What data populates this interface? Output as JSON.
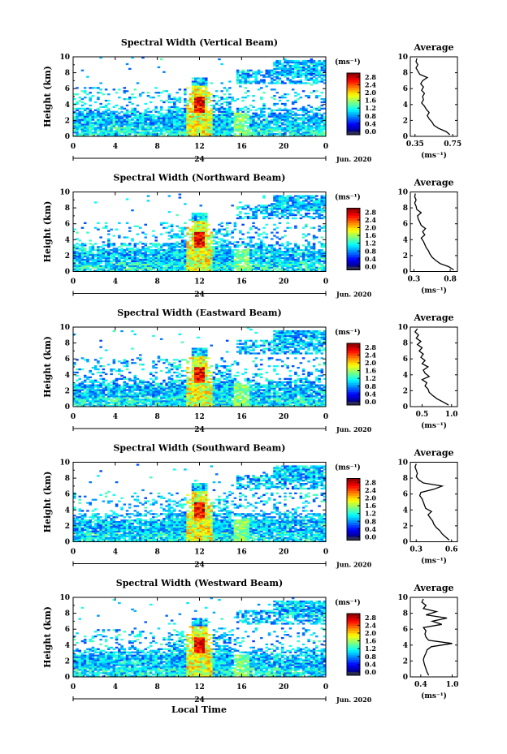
{
  "footer_xlabel": "Local Time",
  "chart_data": [
    {
      "type": "heatmap",
      "title": "Spectral Width (Vertical Beam)",
      "ylabel": "Height (km)",
      "ylim": [
        0,
        10
      ],
      "xlim": [
        0,
        24
      ],
      "xticks": [
        "0",
        "4",
        "8",
        "12",
        "16",
        "20",
        "0"
      ],
      "date_label": "24",
      "date_suffix": "Jun. 2020",
      "colorbar_unit": "(ms⁻¹)",
      "colorbar_ticks": [
        "0.0",
        "0.4",
        "0.8",
        "1.2",
        "1.6",
        "2.0",
        "2.4",
        "2.8"
      ],
      "colorbar_range": [
        0,
        3.0
      ],
      "grid": false,
      "profile": {
        "title": "Average",
        "xlabel": "(ms⁻¹)",
        "xticks": [
          "0.35",
          "0.75"
        ],
        "xlim": [
          0.3,
          0.8
        ],
        "heights": [
          0.2,
          0.6,
          1.0,
          1.4,
          1.8,
          2.2,
          2.6,
          3.0,
          3.4,
          3.8,
          4.2,
          4.6,
          5.0,
          5.4,
          5.8,
          6.2,
          6.6,
          7.0,
          7.4,
          7.8,
          8.2,
          8.6,
          9.0,
          9.4,
          9.8
        ],
        "values": [
          0.72,
          0.68,
          0.6,
          0.55,
          0.53,
          0.5,
          0.48,
          0.5,
          0.47,
          0.45,
          0.42,
          0.44,
          0.43,
          0.45,
          0.42,
          0.44,
          0.41,
          0.43,
          0.48,
          0.4,
          0.38,
          0.36,
          0.38,
          0.36,
          0.37
        ]
      }
    },
    {
      "type": "heatmap",
      "title": "Spectral Width (Northward Beam)",
      "ylabel": "Height (km)",
      "ylim": [
        0,
        10
      ],
      "xlim": [
        0,
        24
      ],
      "xticks": [
        "0",
        "4",
        "8",
        "12",
        "16",
        "20",
        "0"
      ],
      "date_label": "24",
      "date_suffix": "Jun. 2020",
      "colorbar_unit": "(ms⁻¹)",
      "colorbar_ticks": [
        "0.0",
        "0.4",
        "0.8",
        "1.2",
        "1.6",
        "2.0",
        "2.4",
        "2.8"
      ],
      "colorbar_range": [
        0,
        3.0
      ],
      "grid": false,
      "profile": {
        "title": "Average",
        "xlabel": "(ms⁻¹)",
        "xticks": [
          "0.3",
          "0.8"
        ],
        "xlim": [
          0.25,
          0.9
        ],
        "heights": [
          0.2,
          0.6,
          1.0,
          1.4,
          1.8,
          2.2,
          2.6,
          3.0,
          3.4,
          3.8,
          4.2,
          4.6,
          5.0,
          5.4,
          5.8,
          6.2,
          6.6,
          7.0,
          7.4,
          7.8,
          8.2,
          8.6,
          9.0,
          9.4,
          9.8
        ],
        "values": [
          0.85,
          0.78,
          0.66,
          0.6,
          0.55,
          0.52,
          0.5,
          0.47,
          0.45,
          0.43,
          0.4,
          0.45,
          0.42,
          0.46,
          0.4,
          0.38,
          0.36,
          0.35,
          0.4,
          0.34,
          0.33,
          0.31,
          0.33,
          0.31,
          0.32
        ]
      }
    },
    {
      "type": "heatmap",
      "title": "Spectral Width (Eastward Beam)",
      "ylabel": "Height (km)",
      "ylim": [
        0,
        10
      ],
      "xlim": [
        0,
        24
      ],
      "xticks": [
        "0",
        "4",
        "8",
        "12",
        "16",
        "20",
        "0"
      ],
      "date_label": "24",
      "date_suffix": "Jun. 2020",
      "colorbar_unit": "(ms⁻¹)",
      "colorbar_ticks": [
        "0.0",
        "0.4",
        "0.8",
        "1.2",
        "1.6",
        "2.0",
        "2.4",
        "2.8"
      ],
      "colorbar_range": [
        0,
        3.0
      ],
      "grid": false,
      "profile": {
        "title": "Average",
        "xlabel": "(ms⁻¹)",
        "xticks": [
          "0.5",
          "1.0"
        ],
        "xlim": [
          0.3,
          1.1
        ],
        "heights": [
          0.2,
          0.6,
          1.0,
          1.4,
          1.8,
          2.2,
          2.6,
          3.0,
          3.4,
          3.8,
          4.2,
          4.6,
          5.0,
          5.4,
          5.8,
          6.2,
          6.6,
          7.0,
          7.4,
          7.8,
          8.2,
          8.6,
          9.0,
          9.4,
          9.8
        ],
        "values": [
          0.95,
          0.85,
          0.75,
          0.68,
          0.62,
          0.6,
          0.55,
          0.58,
          0.5,
          0.62,
          0.55,
          0.52,
          0.6,
          0.5,
          0.55,
          0.48,
          0.52,
          0.45,
          0.5,
          0.42,
          0.48,
          0.4,
          0.44,
          0.38,
          0.42
        ]
      }
    },
    {
      "type": "heatmap",
      "title": "Spectral Width (Southward Beam)",
      "ylabel": "Height (km)",
      "ylim": [
        0,
        10
      ],
      "xlim": [
        0,
        24
      ],
      "xticks": [
        "0",
        "4",
        "8",
        "12",
        "16",
        "20",
        "0"
      ],
      "date_label": "24",
      "date_suffix": "Jun. 2020",
      "colorbar_unit": "(ms⁻¹)",
      "colorbar_ticks": [
        "0.0",
        "0.4",
        "0.8",
        "1.2",
        "1.6",
        "2.0",
        "2.4",
        "2.8"
      ],
      "colorbar_range": [
        0,
        3.0
      ],
      "grid": false,
      "profile": {
        "title": "Average",
        "xlabel": "(ms⁻¹)",
        "xticks": [
          "0.3",
          "0.6"
        ],
        "xlim": [
          0.25,
          0.65
        ],
        "heights": [
          0.2,
          0.6,
          1.0,
          1.4,
          1.8,
          2.2,
          2.6,
          3.0,
          3.4,
          3.8,
          4.2,
          4.6,
          5.0,
          5.4,
          5.8,
          6.2,
          6.6,
          7.0,
          7.4,
          7.8,
          8.2,
          8.6,
          9.0,
          9.4,
          9.8
        ],
        "values": [
          0.58,
          0.55,
          0.52,
          0.5,
          0.47,
          0.45,
          0.44,
          0.42,
          0.4,
          0.43,
          0.38,
          0.37,
          0.36,
          0.35,
          0.33,
          0.34,
          0.45,
          0.52,
          0.36,
          0.32,
          0.3,
          0.31,
          0.3,
          0.29,
          0.3
        ]
      }
    },
    {
      "type": "heatmap",
      "title": "Spectral Width (Westward Beam)",
      "ylabel": "Height (km)",
      "ylim": [
        0,
        10
      ],
      "xlim": [
        0,
        24
      ],
      "xticks": [
        "0",
        "4",
        "8",
        "12",
        "16",
        "20",
        "0"
      ],
      "date_label": "24",
      "date_suffix": "Jun. 2020",
      "colorbar_unit": "(ms⁻¹)",
      "colorbar_ticks": [
        "0.0",
        "0.4",
        "0.8",
        "1.2",
        "1.6",
        "2.0",
        "2.4",
        "2.8"
      ],
      "colorbar_range": [
        0,
        3.0
      ],
      "grid": false,
      "profile": {
        "title": "Average",
        "xlabel": "(ms⁻¹)",
        "xticks": [
          "0.4",
          "1.0"
        ],
        "xlim": [
          0.2,
          1.1
        ],
        "heights": [
          0.2,
          0.6,
          1.0,
          1.4,
          1.8,
          2.2,
          2.6,
          3.0,
          3.4,
          3.8,
          4.2,
          4.6,
          5.0,
          5.4,
          5.8,
          6.2,
          6.6,
          7.0,
          7.4,
          7.8,
          8.2,
          8.6,
          9.0,
          9.4,
          9.8
        ],
        "values": [
          0.55,
          0.52,
          0.5,
          0.48,
          0.46,
          0.45,
          0.47,
          0.5,
          0.52,
          0.6,
          1.0,
          0.55,
          0.5,
          0.48,
          0.5,
          0.45,
          0.8,
          0.62,
          0.9,
          0.5,
          0.7,
          0.45,
          0.5,
          0.42,
          0.45
        ]
      }
    }
  ]
}
